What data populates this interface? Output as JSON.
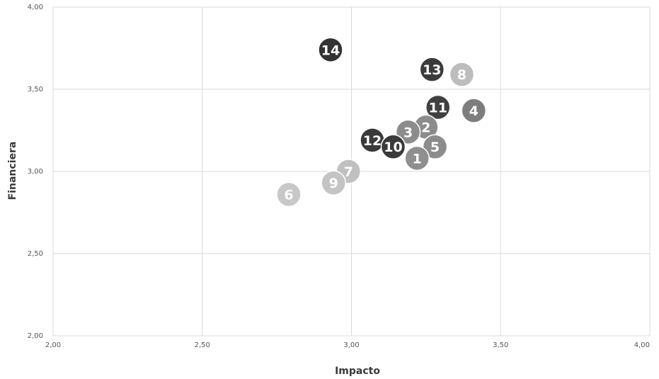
{
  "chart_data": {
    "type": "scatter",
    "xlabel": "Impacto",
    "ylabel": "Financiera",
    "xlim": [
      2.0,
      4.0
    ],
    "ylim": [
      2.0,
      4.0
    ],
    "x_ticks": [
      "2,00",
      "2,50",
      "3,00",
      "3,50",
      "4,00"
    ],
    "y_ticks": [
      "2,00",
      "2,50",
      "3,00",
      "3,50",
      "4,00"
    ],
    "grid": true,
    "points": [
      {
        "label": "14",
        "x": 2.93,
        "y": 3.74,
        "color": "#333333"
      },
      {
        "label": "13",
        "x": 3.27,
        "y": 3.62,
        "color": "#3b3b3b"
      },
      {
        "label": "8",
        "x": 3.37,
        "y": 3.59,
        "color": "#bdbdbd"
      },
      {
        "label": "11",
        "x": 3.29,
        "y": 3.39,
        "color": "#404040"
      },
      {
        "label": "4",
        "x": 3.41,
        "y": 3.37,
        "color": "#7d7d7d"
      },
      {
        "label": "2",
        "x": 3.25,
        "y": 3.27,
        "color": "#8c8c8c"
      },
      {
        "label": "3",
        "x": 3.19,
        "y": 3.24,
        "color": "#8c8c8c"
      },
      {
        "label": "12",
        "x": 3.07,
        "y": 3.19,
        "color": "#3a3a3a"
      },
      {
        "label": "10",
        "x": 3.14,
        "y": 3.15,
        "color": "#3a3a3a"
      },
      {
        "label": "5",
        "x": 3.28,
        "y": 3.15,
        "color": "#8c8c8c"
      },
      {
        "label": "1",
        "x": 3.22,
        "y": 3.08,
        "color": "#8f8f8f"
      },
      {
        "label": "7",
        "x": 2.99,
        "y": 3.0,
        "color": "#c0c0c0"
      },
      {
        "label": "9",
        "x": 2.94,
        "y": 2.93,
        "color": "#c4c4c4"
      },
      {
        "label": "6",
        "x": 2.79,
        "y": 2.86,
        "color": "#c8c8c8"
      }
    ]
  }
}
